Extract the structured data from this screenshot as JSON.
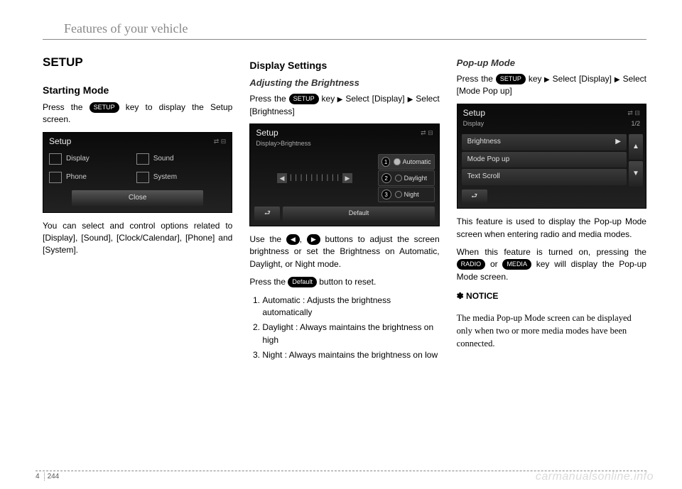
{
  "header": "Features of your vehicle",
  "footer": {
    "chapter": "4",
    "page": "244"
  },
  "watermark": "carmanualsonline.info",
  "keys": {
    "setup": "SETUP",
    "default": "Default",
    "radio": "RADIO",
    "media": "MEDIA"
  },
  "col1": {
    "h1": "SETUP",
    "h2": "Starting Mode",
    "p1a": "Press the ",
    "p1b": " key to display the Setup screen.",
    "ss": {
      "title": "Setup",
      "items": [
        "Display",
        "Sound",
        "Phone",
        "System"
      ],
      "close": "Close"
    },
    "p2": "You can select and control options related to [Display], [Sound], [Clock/Calendar], [Phone] and [System]."
  },
  "col2": {
    "h2": "Display Settings",
    "h3": "Adjusting the Brightness",
    "p1a": "Press the ",
    "p1b": " key",
    "p1c": "Select [Display] ",
    "p1d": "Select [Brightness]",
    "ss": {
      "title": "Setup",
      "sub": "Display>Brightness",
      "opts": [
        "Automatic",
        "Daylight",
        "Night"
      ],
      "default": "Default"
    },
    "p2a": "Use the ",
    "p2b": " buttons to adjust the screen brightness or set the Brightness on Automatic, Daylight, or Night mode.",
    "p3a": "Press the ",
    "p3b": " button to reset.",
    "li1": "Automatic : Adjusts the brightness automatically",
    "li2": "Daylight : Always maintains the brightness on high",
    "li3": "Night : Always maintains the brightness on low"
  },
  "col3": {
    "h3": "Pop-up Mode",
    "p1a": "Press the ",
    "p1b": " key",
    "p1c": "Select [Display] ",
    "p1d": "Select [Mode Pop up]",
    "ss": {
      "title": "Setup",
      "sub": "Display",
      "page": "1/2",
      "rows": [
        "Brightness",
        "Mode Pop up",
        "Text Scroll"
      ]
    },
    "p2": "This feature is used to display the Pop-up Mode screen when entering radio and media modes.",
    "p3a": "When this feature is turned on, pressing the ",
    "p3b": " or ",
    "p3c": " key will display the Pop-up Mode screen.",
    "noticeH": "✽ NOTICE",
    "noticeBody": "The media Pop-up Mode screen can be displayed only when two or more media modes have been connected."
  }
}
